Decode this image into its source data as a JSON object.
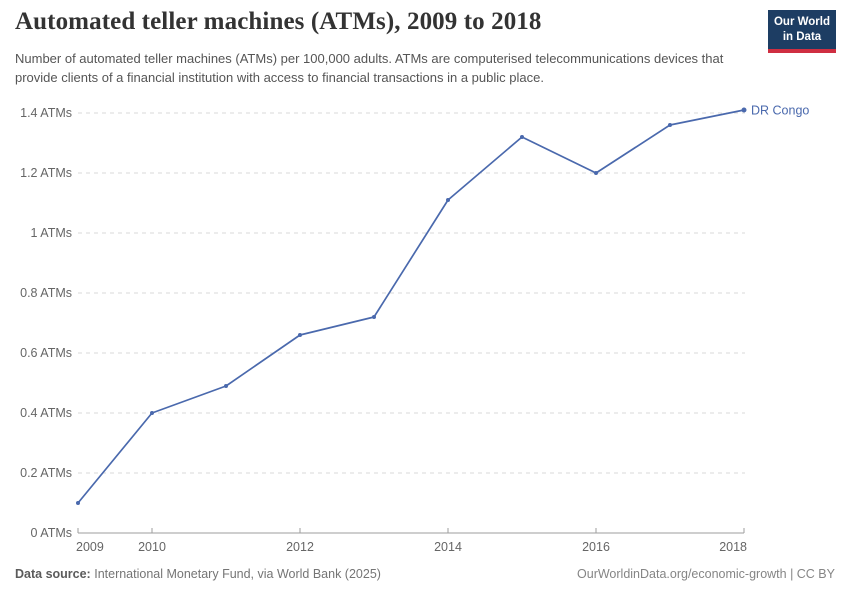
{
  "header": {
    "title": "Automated teller machines (ATMs), 2009 to 2018",
    "subtitle": "Number of automated teller machines (ATMs) per 100,000 adults. ATMs are computerised telecommunications devices that provide clients of a financial institution with access to financial transactions in a public place.",
    "logo": {
      "line1": "Our World",
      "line2": "in Data",
      "bg_color": "#1d3d63",
      "bar_color": "#cf2e41"
    }
  },
  "chart_data": {
    "type": "line",
    "title": "Automated teller machines (ATMs), 2009 to 2018",
    "xlabel": "",
    "ylabel": "",
    "xlim": [
      2009,
      2018
    ],
    "ylim": [
      0,
      1.4
    ],
    "grid": "horizontal-dashed",
    "legend": "end-of-line-label",
    "x": [
      2009,
      2010,
      2011,
      2012,
      2013,
      2014,
      2015,
      2016,
      2017,
      2018
    ],
    "series": [
      {
        "name": "DR Congo",
        "color": "#4a69ad",
        "values": [
          0.1,
          0.4,
          0.49,
          0.66,
          0.72,
          1.11,
          1.32,
          1.2,
          1.36,
          1.41
        ]
      }
    ],
    "xticks": [
      2009,
      2010,
      2012,
      2014,
      2016,
      2018
    ],
    "yticks": [
      {
        "value": 0,
        "label": "0 ATMs"
      },
      {
        "value": 0.2,
        "label": "0.2 ATMs"
      },
      {
        "value": 0.4,
        "label": "0.4 ATMs"
      },
      {
        "value": 0.6,
        "label": "0.6 ATMs"
      },
      {
        "value": 0.8,
        "label": "0.8 ATMs"
      },
      {
        "value": 1,
        "label": "1 ATMs"
      },
      {
        "value": 1.2,
        "label": "1.2 ATMs"
      },
      {
        "value": 1.4,
        "label": "1.4 ATMs"
      }
    ],
    "colors": {
      "gridline": "#dadada",
      "axis": "#9e9e9e",
      "tick_label": "#666666"
    }
  },
  "footer": {
    "source_label": "Data source:",
    "source_text": "International Monetary Fund, via World Bank (2025)",
    "credit_text": "OurWorldinData.org/economic-growth | CC BY"
  }
}
